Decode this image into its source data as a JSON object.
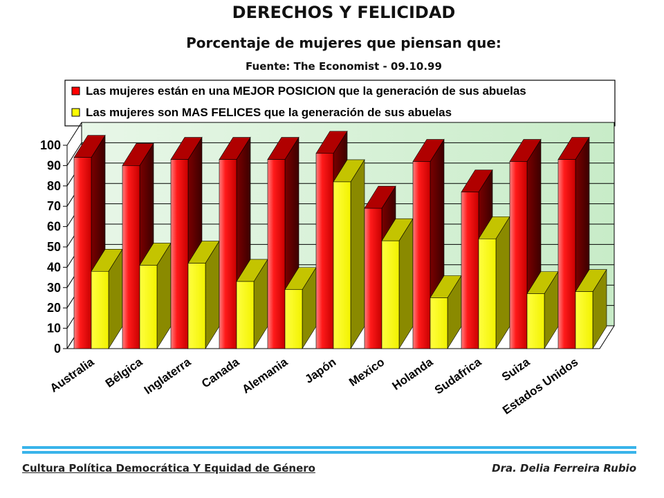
{
  "title": "DERECHOS Y FELICIDAD",
  "subtitle": "Porcentaje de mujeres que piensan que:",
  "source": "Fuente: The Economist - 09.10.99",
  "footer": {
    "left": "Cultura Política Democrática Y Equidad de Género",
    "right": "Dra. Delia Ferreira Rubio"
  },
  "chart_data": {
    "type": "bar",
    "categories": [
      "Australia",
      "Bélgica",
      "Inglaterra",
      "Canada",
      "Alemania",
      "Japón",
      "Mexico",
      "Holanda",
      "Sudafrica",
      "Suiza",
      "Estados Unidos"
    ],
    "series": [
      {
        "name": "Las mujeres están en una MEJOR POSICION que la generación de sus abuelas",
        "color": "#ff0000",
        "values": [
          94,
          90,
          93,
          93,
          93,
          96,
          69,
          92,
          77,
          92,
          93
        ]
      },
      {
        "name": "Las mujeres son MAS FELICES que la generación de sus abuelas",
        "color": "#ffff00",
        "values": [
          38,
          41,
          42,
          33,
          29,
          82,
          53,
          25,
          54,
          27,
          28
        ]
      }
    ],
    "yticks": [
      0,
      10,
      20,
      30,
      40,
      50,
      60,
      70,
      80,
      90,
      100
    ],
    "ylim": [
      0,
      100
    ],
    "grid": true,
    "legend_position": "top",
    "style": "3d-clustered-bar"
  }
}
